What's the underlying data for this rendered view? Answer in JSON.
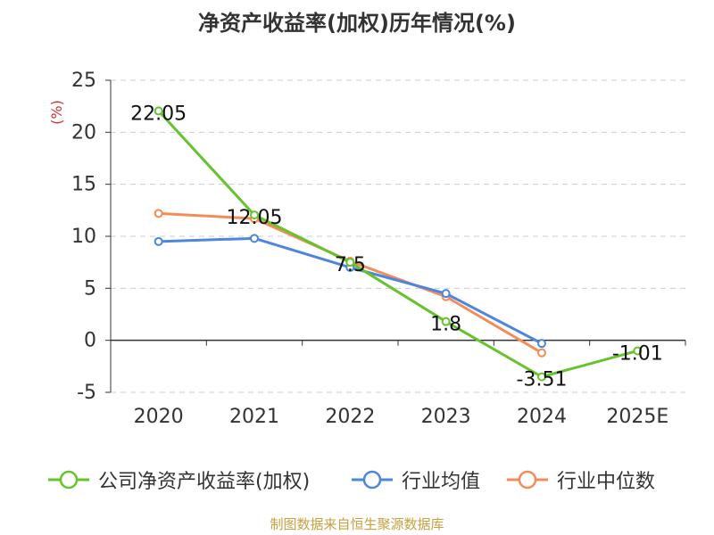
{
  "chart_data": {
    "type": "line",
    "title": "净资产收益率(加权)历年情况(%)",
    "ylabel": "(%)",
    "xlabel": "",
    "categories": [
      "2020",
      "2021",
      "2022",
      "2023",
      "2024",
      "2025E"
    ],
    "ylim": [
      -5,
      25
    ],
    "yticks": [
      -5,
      0,
      5,
      10,
      15,
      20,
      25
    ],
    "grid": true,
    "legend_position": "bottom",
    "series": [
      {
        "name": "公司净资产收益率(加权)",
        "color": "#66c32e",
        "values": [
          22.05,
          12.05,
          7.5,
          1.8,
          -3.51,
          -1.01
        ],
        "data_labels": [
          "22.05",
          "12.05",
          "7.5",
          "1.8",
          "-3.51",
          "-1.01"
        ]
      },
      {
        "name": "行业均值",
        "color": "#4d86dc",
        "values": [
          9.5,
          9.8,
          7.0,
          4.5,
          -0.3,
          null
        ]
      },
      {
        "name": "行业中位数",
        "color": "#f58b58",
        "values": [
          12.2,
          11.7,
          7.6,
          4.2,
          -1.2,
          null
        ]
      }
    ]
  },
  "source_note": "制图数据来自恒生聚源数据库",
  "colors": {
    "source_note": "#c8a040",
    "ylabel": "#d03030",
    "axis": "#333333",
    "grid": "#cccccc"
  }
}
